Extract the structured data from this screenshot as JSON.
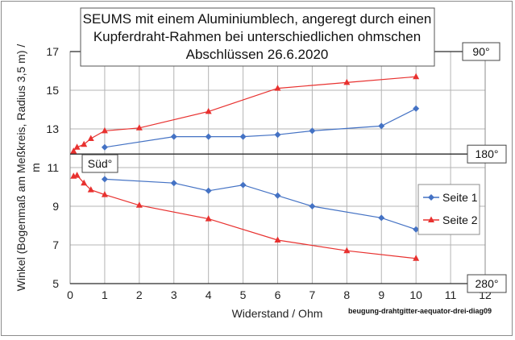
{
  "chart_data": {
    "type": "line",
    "title_lines": [
      "SEUMS mit einem Aluminiumblech, angeregt durch einen",
      "Kupferdraht-Rahmen bei unterschiedlichen ohmschen",
      "Abschlüssen 26.6.2020"
    ],
    "xlabel": "Widerstand / Ohm",
    "ylabel_line1": "Winkel (Bogenmaß am Meßkreis, Radius 3,5 m) /",
    "ylabel_line2": "m",
    "xlim": [
      0,
      12
    ],
    "ylim": [
      5,
      17
    ],
    "x_ticks": [
      0,
      1,
      2,
      3,
      4,
      5,
      6,
      7,
      8,
      9,
      10,
      11,
      12
    ],
    "y_ticks": [
      5,
      7,
      9,
      11,
      13,
      15,
      17
    ],
    "grid": true,
    "legend_position": "right",
    "series": [
      {
        "name": "Seite 1",
        "color": "#4472c4",
        "marker": "diamond",
        "segments": [
          {
            "points": [
              [
                1,
                12.05
              ],
              [
                3,
                12.6
              ],
              [
                4,
                12.6
              ],
              [
                5,
                12.6
              ],
              [
                6,
                12.7
              ],
              [
                7,
                12.9
              ],
              [
                9,
                13.15
              ],
              [
                10,
                14.05
              ]
            ]
          },
          {
            "points": [
              [
                1,
                10.4
              ],
              [
                3,
                10.2
              ],
              [
                4,
                9.8
              ],
              [
                5,
                10.1
              ],
              [
                6,
                9.55
              ],
              [
                7,
                9.0
              ],
              [
                9,
                8.4
              ],
              [
                10,
                7.8
              ]
            ]
          }
        ]
      },
      {
        "name": "Seite 2",
        "color": "#e8312f",
        "marker": "triangle",
        "segments": [
          {
            "points": [
              [
                0.1,
                11.85
              ],
              [
                0.2,
                12.05
              ],
              [
                0.4,
                12.2
              ],
              [
                0.6,
                12.5
              ],
              [
                1,
                12.9
              ],
              [
                2,
                13.05
              ],
              [
                4,
                13.9
              ],
              [
                6,
                15.1
              ],
              [
                8,
                15.4
              ],
              [
                10,
                15.7
              ]
            ]
          },
          {
            "points": [
              [
                0.1,
                10.55
              ],
              [
                0.2,
                10.6
              ],
              [
                0.4,
                10.2
              ],
              [
                0.6,
                9.85
              ],
              [
                1,
                9.6
              ],
              [
                2,
                9.05
              ],
              [
                4,
                8.35
              ],
              [
                6,
                7.25
              ],
              [
                8,
                6.7
              ],
              [
                10,
                6.3
              ]
            ]
          }
        ]
      }
    ],
    "reference_lines": [
      {
        "y": 17,
        "label": "90°"
      },
      {
        "y": 11.7,
        "label": "180°"
      },
      {
        "y": 5,
        "label": "280°"
      }
    ],
    "annotation_sued": "Süd°",
    "credit": "beugung-drahtgitter-aequator-drei-diag09"
  }
}
